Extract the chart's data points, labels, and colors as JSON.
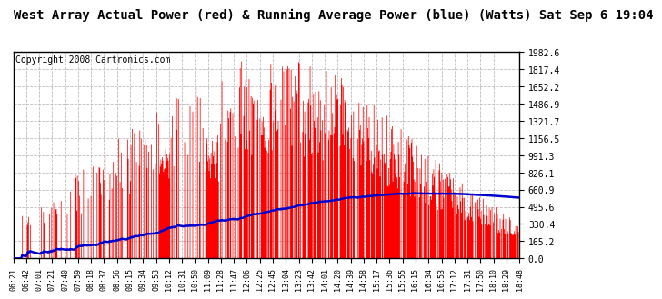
{
  "title": "West Array Actual Power (red) & Running Average Power (blue) (Watts) Sat Sep 6 19:04",
  "copyright": "Copyright 2008 Cartronics.com",
  "yticks": [
    0.0,
    165.2,
    330.4,
    495.6,
    660.9,
    826.1,
    991.3,
    1156.5,
    1321.7,
    1486.9,
    1652.2,
    1817.4,
    1982.6
  ],
  "ymax": 1982.6,
  "ymin": 0.0,
  "xtick_labels": [
    "06:21",
    "06:42",
    "07:01",
    "07:21",
    "07:40",
    "07:59",
    "08:18",
    "08:37",
    "08:56",
    "09:15",
    "09:34",
    "09:53",
    "10:12",
    "10:31",
    "10:50",
    "11:09",
    "11:28",
    "11:47",
    "12:06",
    "12:25",
    "12:45",
    "13:04",
    "13:23",
    "13:42",
    "14:01",
    "14:20",
    "14:39",
    "14:58",
    "15:17",
    "15:36",
    "15:55",
    "16:15",
    "16:34",
    "16:53",
    "17:12",
    "17:31",
    "17:50",
    "18:10",
    "18:29",
    "18:48"
  ],
  "bg_color": "#ffffff",
  "plot_bg": "#ffffff",
  "grid_color": "#bbbbbb",
  "red_color": "#ff0000",
  "blue_color": "#0000cc",
  "title_fontsize": 10,
  "copyright_fontsize": 7,
  "tick_fontsize": 7,
  "xtick_fontsize": 6
}
